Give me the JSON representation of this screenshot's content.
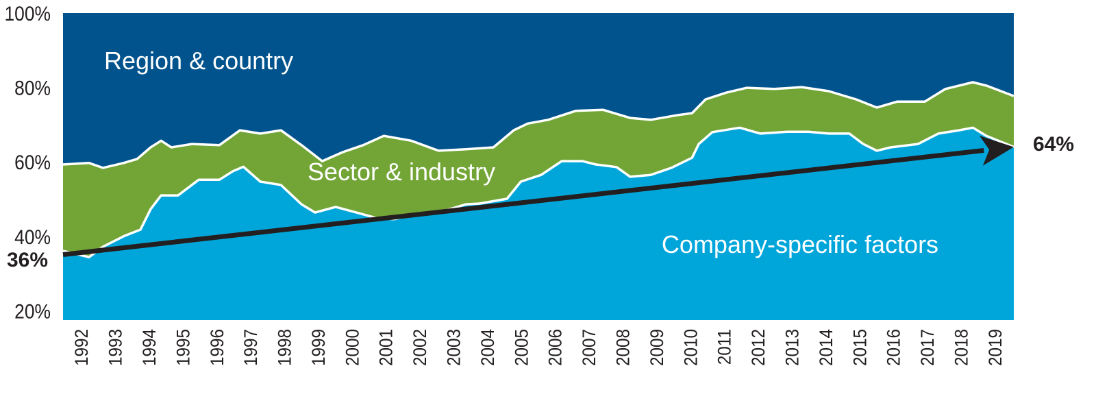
{
  "chart_data": {
    "type": "area",
    "title": "",
    "xlabel": "",
    "ylabel": "",
    "ylim": [
      17.5,
      100
    ],
    "xlim": [
      1991.47,
      2019.57
    ],
    "yticks": [
      "20%",
      "40%",
      "60%",
      "80%",
      "100%"
    ],
    "ytick_values": [
      20,
      40,
      60,
      80,
      100
    ],
    "xticks": [
      "1992",
      "1993",
      "1994",
      "1995",
      "1996",
      "1997",
      "1998",
      "1999",
      "2000",
      "2001",
      "2002",
      "2003",
      "2004",
      "2005",
      "2006",
      "2007",
      "2008",
      "2009",
      "2010",
      "2011",
      "2012",
      "2013",
      "2014",
      "2015",
      "2016",
      "2017",
      "2018",
      "2019"
    ],
    "stacked": true,
    "series": [
      {
        "name": "Company-specific factors",
        "color": "#00A6DA",
        "boundary": "cumulative top of company-specific share (%)",
        "x": [
          1991.47,
          1992.24,
          1992.65,
          1993.26,
          1993.76,
          1994.06,
          1994.37,
          1994.87,
          1995.48,
          1996.09,
          1996.49,
          1996.8,
          1997.3,
          1997.91,
          1998.52,
          1998.92,
          1999.53,
          2000.14,
          2000.74,
          2001.25,
          2001.96,
          2002.57,
          2003.38,
          2003.78,
          2004.59,
          2005.0,
          2005.6,
          2006.21,
          2006.82,
          2007.22,
          2007.83,
          2008.23,
          2008.84,
          2009.45,
          2010.06,
          2010.26,
          2010.66,
          2011.47,
          2012.08,
          2012.89,
          2013.5,
          2014.1,
          2014.71,
          2015.12,
          2015.52,
          2015.93,
          2016.74,
          2017.34,
          2017.95,
          2018.36,
          2018.76,
          2019.57
        ],
        "y": [
          36.1,
          34.4,
          37.2,
          40.0,
          41.8,
          47.3,
          51.0,
          51.0,
          55.2,
          55.2,
          57.5,
          58.7,
          54.7,
          53.8,
          48.6,
          46.4,
          47.9,
          46.4,
          44.9,
          44.6,
          46.0,
          46.4,
          48.6,
          48.8,
          50.1,
          54.7,
          56.5,
          60.2,
          60.2,
          59.3,
          58.6,
          56.0,
          56.5,
          58.4,
          61.1,
          64.8,
          68.0,
          69.2,
          67.6,
          68.1,
          68.1,
          67.6,
          67.6,
          64.8,
          63.0,
          63.9,
          64.8,
          67.6,
          68.5,
          69.2,
          67.0,
          64.0
        ]
      },
      {
        "name": "Sector & industry",
        "color": "#72A536",
        "boundary": "cumulative top of company + sector share (%)",
        "x": [
          1991.47,
          1992.24,
          1992.65,
          1993.26,
          1993.66,
          1994.06,
          1994.37,
          1994.67,
          1995.28,
          1996.09,
          1996.7,
          1997.3,
          1997.91,
          1998.52,
          1999.13,
          1999.73,
          2000.34,
          2000.95,
          2001.76,
          2002.57,
          2003.38,
          2004.19,
          2004.79,
          2005.2,
          2005.81,
          2006.62,
          2007.43,
          2008.23,
          2008.84,
          2009.65,
          2010.06,
          2010.46,
          2011.07,
          2011.68,
          2012.49,
          2013.3,
          2014.1,
          2014.91,
          2015.52,
          2016.13,
          2016.94,
          2017.55,
          2018.36,
          2018.76,
          2019.57
        ],
        "y": [
          59.3,
          59.7,
          58.4,
          59.7,
          60.8,
          63.9,
          65.7,
          63.9,
          64.8,
          64.5,
          68.5,
          67.6,
          68.5,
          64.5,
          60.2,
          62.6,
          64.5,
          67.0,
          65.7,
          63.0,
          63.4,
          63.9,
          68.5,
          70.3,
          71.3,
          73.7,
          74.0,
          71.8,
          71.3,
          72.6,
          73.1,
          76.8,
          78.6,
          79.9,
          79.6,
          80.1,
          79.0,
          76.8,
          74.6,
          76.2,
          76.2,
          79.6,
          81.4,
          80.5,
          77.7
        ]
      },
      {
        "name": "Region & country",
        "color": "#00538C",
        "boundary": "remainder to 100%",
        "x": [],
        "y": []
      }
    ],
    "annotations": {
      "trend_start_label": "36%",
      "trend_end_label": "64%",
      "trend_start_value": 36,
      "trend_end_value": 64,
      "trend_color": "#231F20"
    }
  }
}
